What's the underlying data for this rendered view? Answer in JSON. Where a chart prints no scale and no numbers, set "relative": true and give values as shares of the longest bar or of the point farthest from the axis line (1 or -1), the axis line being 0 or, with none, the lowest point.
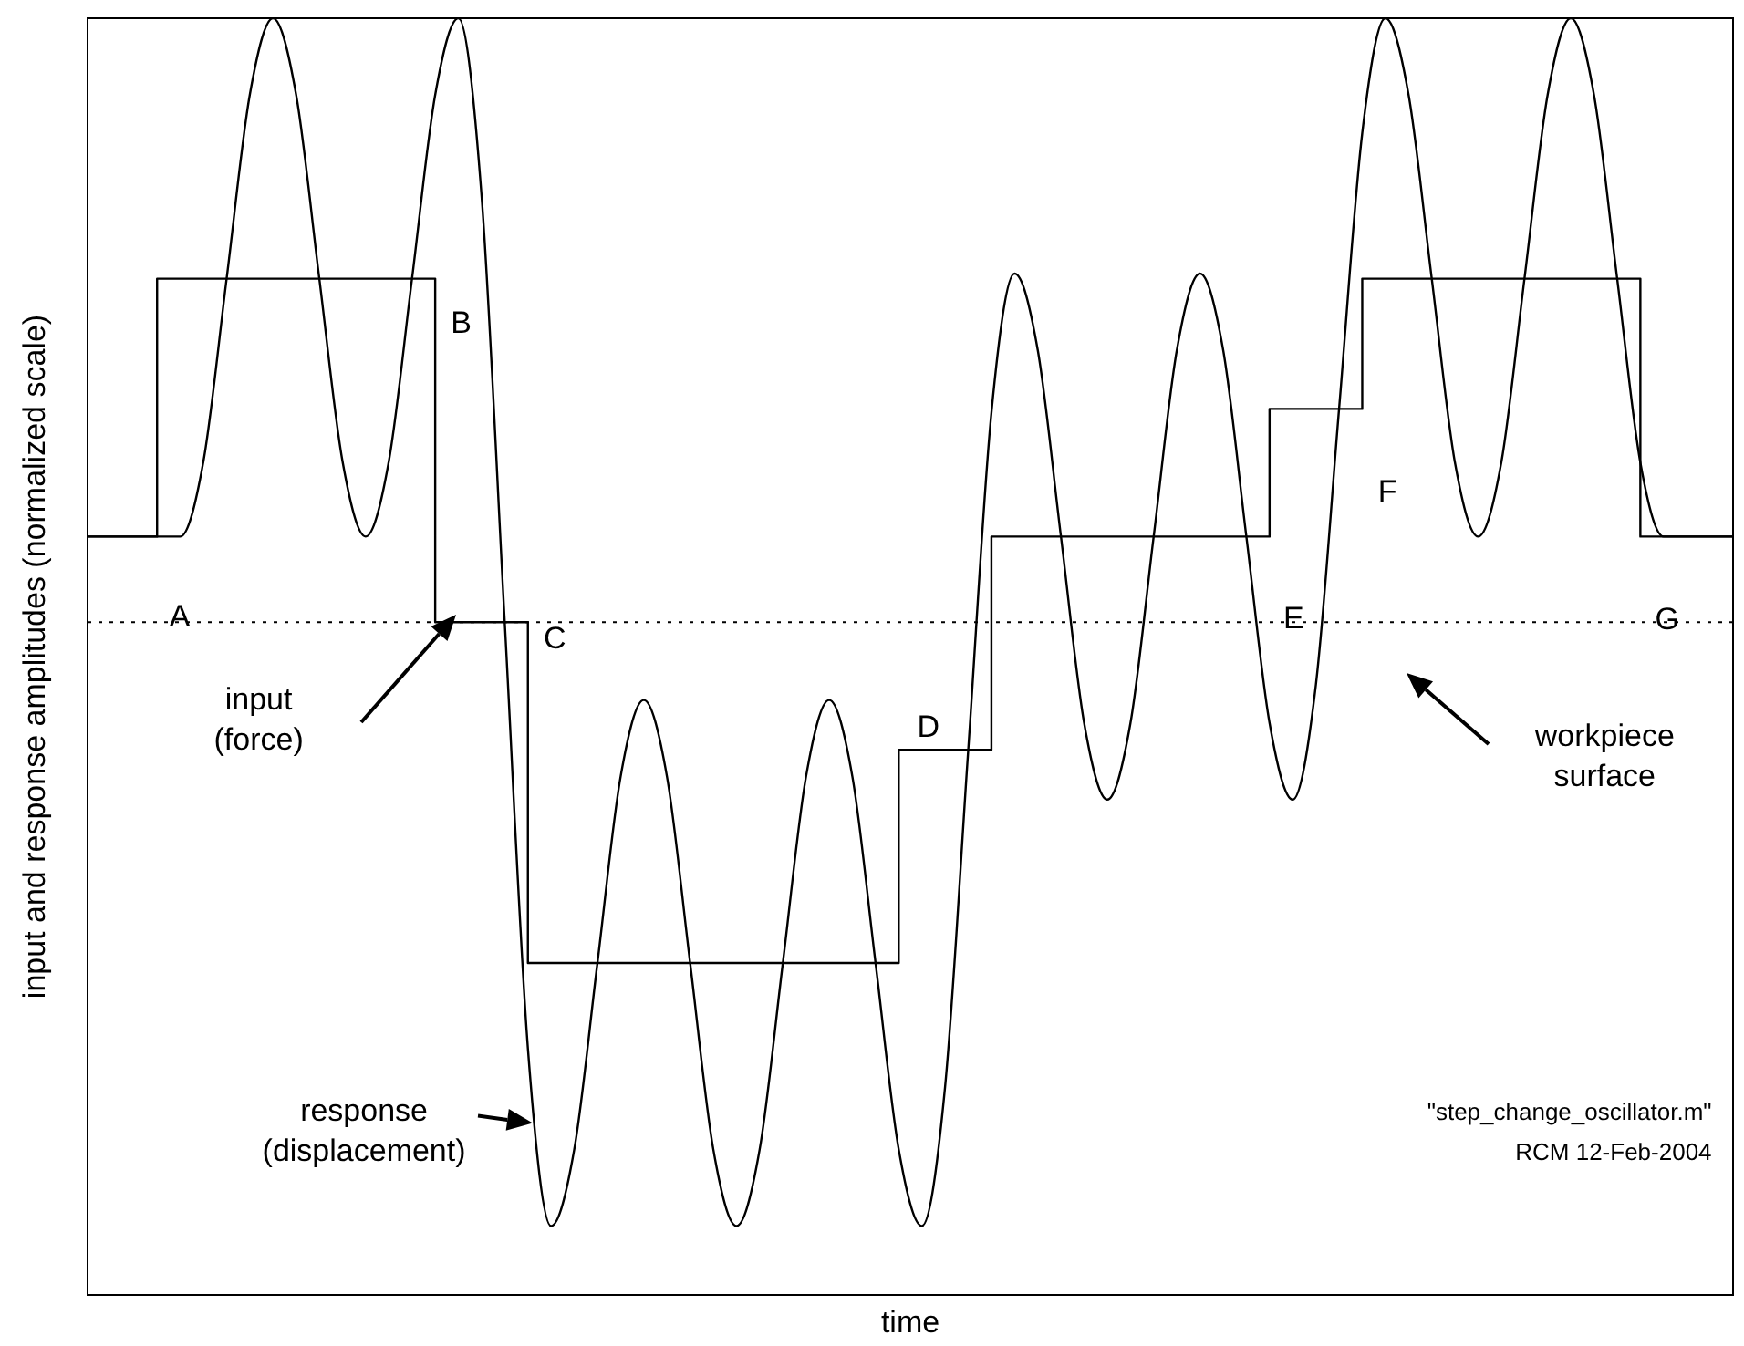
{
  "chart_data": {
    "type": "line",
    "xlabel": "time",
    "ylabel": "input and response amplitudes (normalized scale)",
    "relative": true,
    "marker": "none",
    "legend": false,
    "categories": [
      null,
      null,
      null,
      null,
      null,
      null,
      null,
      null,
      null,
      null,
      null,
      null,
      null,
      null,
      null,
      null,
      null,
      null,
      null,
      null,
      null,
      null,
      null,
      null,
      null,
      null,
      null,
      null,
      null,
      null,
      null,
      null,
      null,
      null,
      null,
      null,
      null,
      null,
      null,
      null,
      null,
      null,
      null,
      null,
      null,
      null,
      null,
      null,
      null,
      null,
      null,
      null,
      null,
      null,
      null,
      null,
      null,
      null,
      null,
      null,
      null,
      null,
      null,
      null,
      null,
      null,
      null,
      null,
      null,
      null,
      null,
      null
    ],
    "series": [
      {
        "type": "step",
        "color": "#000000",
        "values": [
          0.594,
          0.594,
          0.594,
          0.594,
          0.796,
          0.796,
          0.796,
          0.796,
          0.796,
          0.796,
          0.796,
          0.796,
          0.796,
          0.796,
          0.796,
          0.796,
          0.527,
          0.527,
          0.527,
          0.527,
          0.26,
          0.26,
          0.26,
          0.26,
          0.26,
          0.26,
          0.26,
          0.26,
          0.26,
          0.26,
          0.26,
          0.26,
          0.26,
          0.26,
          0.26,
          0.26,
          0.427,
          0.427,
          0.427,
          0.427,
          0.594,
          0.594,
          0.594,
          0.594,
          0.594,
          0.594,
          0.594,
          0.594,
          0.594,
          0.594,
          0.594,
          0.594,
          0.694,
          0.694,
          0.694,
          0.694,
          0.796,
          0.796,
          0.796,
          0.796,
          0.796,
          0.796,
          0.796,
          0.796,
          0.796,
          0.796,
          0.796,
          0.796,
          0.594,
          0.594,
          0.594,
          0.594
        ]
      },
      {
        "type": "line",
        "color": "#000000",
        "values": [
          0.594,
          0.594,
          0.594,
          0.594,
          0.594,
          0.653,
          0.796,
          0.94,
          1,
          0.94,
          0.796,
          0.653,
          0.594,
          0.653,
          0.796,
          0.94,
          1,
          0.861,
          0.527,
          0.193,
          0.054,
          0.114,
          0.26,
          0.406,
          0.466,
          0.406,
          0.26,
          0.114,
          0.054,
          0.114,
          0.26,
          0.406,
          0.466,
          0.406,
          0.26,
          0.114,
          0.054,
          0.163,
          0.427,
          0.691,
          0.8,
          0.74,
          0.594,
          0.448,
          0.388,
          0.448,
          0.594,
          0.74,
          0.8,
          0.74,
          0.594,
          0.448,
          0.388,
          0.478,
          0.694,
          0.91,
          1,
          0.94,
          0.796,
          0.652,
          0.594,
          0.652,
          0.796,
          0.94,
          1,
          0.94,
          0.796,
          0.652,
          0.594,
          0.594,
          0.594,
          0.594
        ]
      }
    ],
    "ref_lines": [
      {
        "axis": "y",
        "value": 0.527,
        "label": "workpiece surface",
        "line_style": "dotted",
        "color": "#000000"
      }
    ],
    "annotations": [
      "A",
      "B",
      "C",
      "D",
      "E",
      "F",
      "G",
      "input (force)",
      "response (displacement)",
      "\"step_change_oscillator.m\"",
      "RCM 12-Feb-2004"
    ]
  }
}
